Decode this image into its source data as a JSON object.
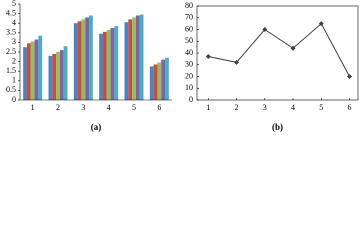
{
  "chart_data": [
    {
      "type": "bar",
      "label": "(a)",
      "categories": [
        "1",
        "2",
        "3",
        "4",
        "5",
        "6"
      ],
      "series": [
        {
          "color": "#4f81bd",
          "values": [
            2.75,
            2.3,
            4.0,
            3.45,
            4.05,
            1.75
          ]
        },
        {
          "color": "#c0504d",
          "values": [
            2.95,
            2.4,
            4.1,
            3.55,
            4.2,
            1.85
          ]
        },
        {
          "color": "#9bbb59",
          "values": [
            3.05,
            2.5,
            4.2,
            3.65,
            4.3,
            1.95
          ]
        },
        {
          "color": "#8064a2",
          "values": [
            3.15,
            2.6,
            4.3,
            3.75,
            4.4,
            2.1
          ]
        },
        {
          "color": "#4bacc6",
          "values": [
            3.35,
            2.8,
            4.4,
            3.85,
            4.45,
            2.2
          ]
        }
      ],
      "ylim": [
        0,
        5
      ],
      "yticks": [
        0,
        0.5,
        1,
        1.5,
        2,
        2.5,
        3,
        3.5,
        4,
        4.5,
        5
      ]
    },
    {
      "type": "line",
      "label": "(b)",
      "x": [
        1,
        2,
        3,
        4,
        5,
        6
      ],
      "values": [
        37,
        32,
        60,
        44,
        65,
        20
      ],
      "color": "#404040",
      "xlim": [
        0.6,
        6.3
      ],
      "xticks": [
        1,
        2,
        3,
        4,
        5,
        6
      ],
      "ylim": [
        0,
        80
      ],
      "yticks": [
        0,
        10,
        20,
        30,
        40,
        50,
        60,
        70,
        80
      ]
    }
  ]
}
